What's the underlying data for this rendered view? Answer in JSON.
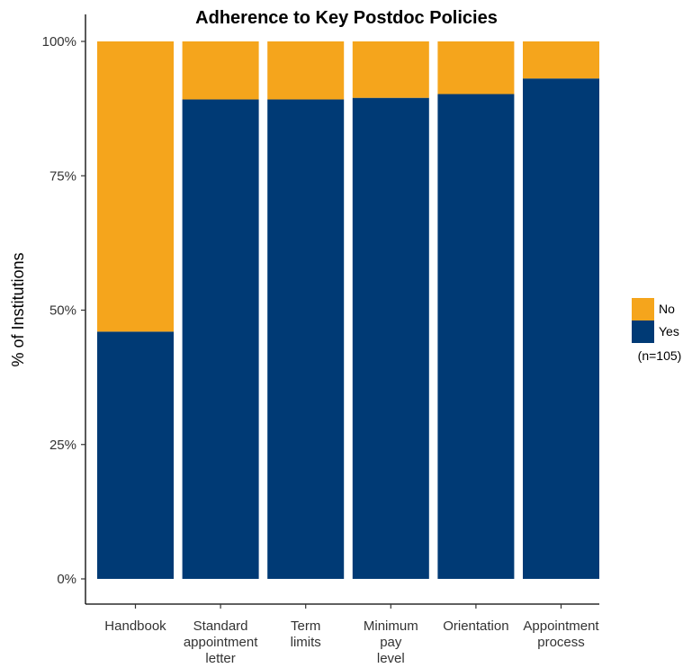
{
  "chart_data": {
    "type": "bar",
    "stacked": true,
    "title": "Adherence to Key Postdoc Policies",
    "ylabel": "% of Institutions",
    "xlabel": "",
    "ylim": [
      0,
      100
    ],
    "yticks": [
      "0%",
      "25%",
      "50%",
      "75%",
      "100%"
    ],
    "categories": [
      [
        "Handbook"
      ],
      [
        "Standard",
        "appointment",
        "letter"
      ],
      [
        "Term",
        "limits"
      ],
      [
        "Minimum",
        "pay",
        "level"
      ],
      [
        "Orientation"
      ],
      [
        "Appointment",
        "process"
      ]
    ],
    "series": [
      {
        "name": "Yes",
        "color": "#003A75",
        "values": [
          46,
          89.2,
          89.2,
          89.5,
          90.2,
          93.1
        ]
      },
      {
        "name": "No",
        "color": "#F5A51C",
        "values": [
          54,
          10.8,
          10.8,
          10.5,
          9.8,
          6.9
        ]
      }
    ],
    "legend": {
      "position": "right",
      "order": [
        "No",
        "Yes"
      ],
      "note": "(n=105)"
    },
    "grid": false
  }
}
